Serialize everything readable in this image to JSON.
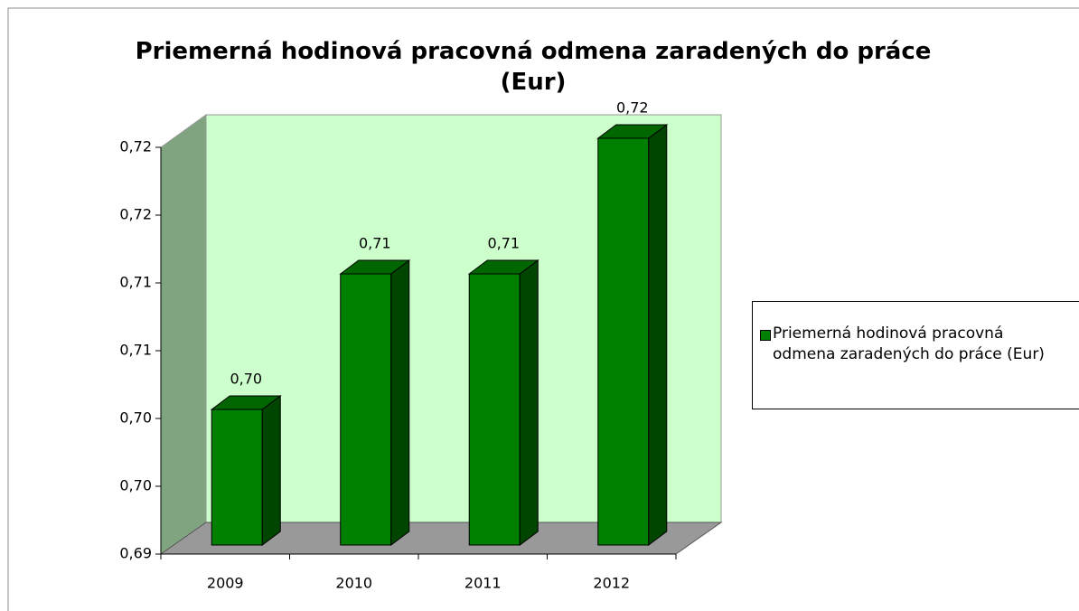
{
  "chart_data": {
    "type": "bar3d",
    "title": "Priemerná hodinová pracovná odmena zaradených do práce (Eur)",
    "categories": [
      "2009",
      "2010",
      "2011",
      "2012"
    ],
    "series": [
      {
        "name": "Priemerná hodinová pracovná odmena zaradených do práce (Eur)",
        "color": "#008000",
        "values": [
          0.7,
          0.71,
          0.71,
          0.72
        ],
        "value_labels": [
          "0,70",
          "0,71",
          "0,71",
          "0,72"
        ]
      }
    ],
    "ylim": [
      0.69,
      0.72
    ],
    "yticks": [
      {
        "value": 0.69,
        "label": "0,69"
      },
      {
        "value": 0.695,
        "label": "0,70"
      },
      {
        "value": 0.7,
        "label": "0,70"
      },
      {
        "value": 0.705,
        "label": "0,71"
      },
      {
        "value": 0.71,
        "label": "0,71"
      },
      {
        "value": 0.715,
        "label": "0,72"
      },
      {
        "value": 0.72,
        "label": "0,72"
      }
    ],
    "legend": "right"
  }
}
